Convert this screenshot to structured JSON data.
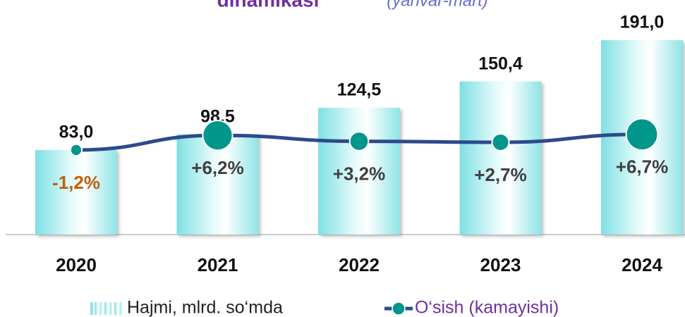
{
  "chart_data": {
    "type": "bar",
    "title": "dinamikasi",
    "subtitle": "(yanvar-mart)",
    "categories": [
      "2020",
      "2021",
      "2022",
      "2023",
      "2024"
    ],
    "series": [
      {
        "name": "Hajmi, mlrd. so‘mda",
        "type": "bar",
        "color": "#aeeef0",
        "values": [
          83.0,
          98.5,
          124.5,
          150.4,
          191.0
        ],
        "value_labels": [
          "83,0",
          "98,5",
          "124,5",
          "150,4",
          "191,0"
        ]
      },
      {
        "name": "O‘sish (kamayishi)",
        "type": "line",
        "axis": "y2",
        "color": "#2e4a8a",
        "marker_color": "#00968c",
        "values": [
          -1.2,
          6.2,
          3.2,
          2.7,
          6.7
        ],
        "value_labels": [
          "-1,2%",
          "+6,2%",
          "+3,2%",
          "+2,7%",
          "+6,7%"
        ]
      }
    ],
    "ylim": [
      0,
      200
    ],
    "y2lim": [
      -44,
      59
    ],
    "legend": "bottom"
  }
}
